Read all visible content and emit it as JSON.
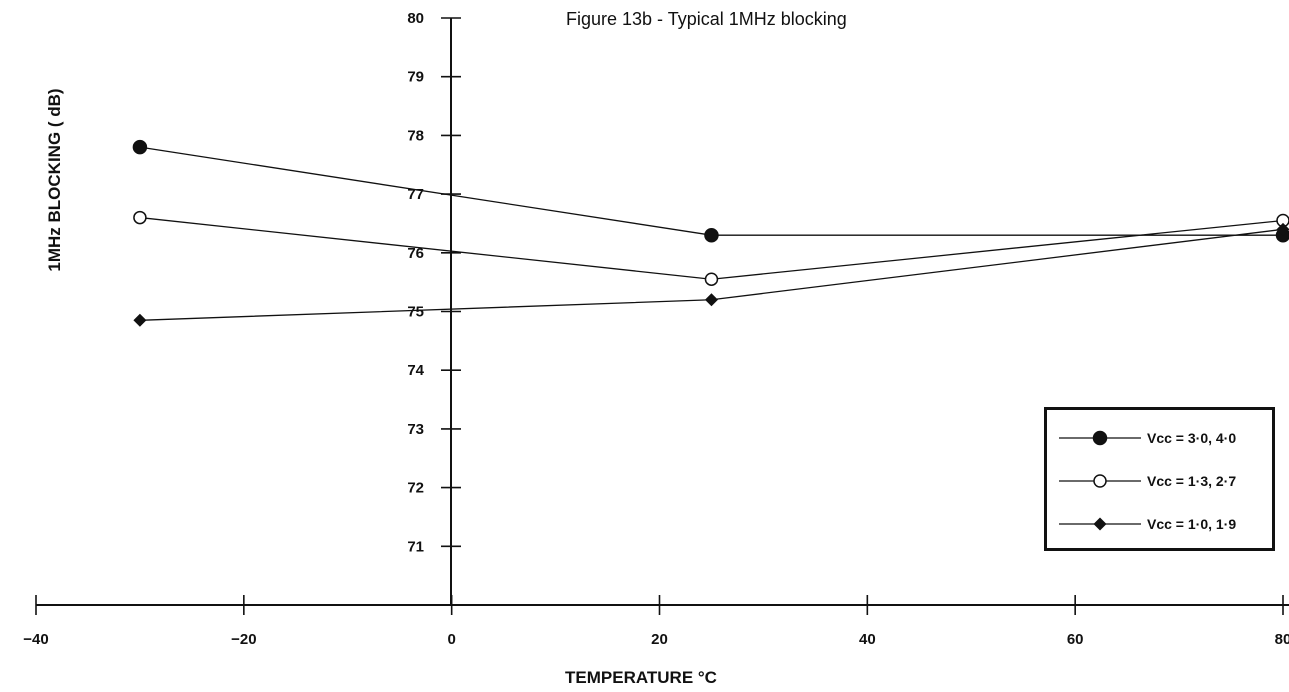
{
  "chart_data": {
    "type": "line",
    "title": "Figure 13b - Typical 1MHz blocking",
    "xlabel": "TEMPERATURE °C",
    "ylabel": "1MHz BLOCKING ( dB)",
    "xlim": [
      -40,
      80
    ],
    "ylim": [
      70,
      80
    ],
    "x_ticks": [
      -40,
      -20,
      0,
      20,
      40,
      60,
      80
    ],
    "x_tick_labels": [
      "−40",
      "−20",
      "0",
      "20",
      "40",
      "60",
      "80"
    ],
    "y_ticks": [
      71,
      72,
      73,
      74,
      75,
      76,
      77,
      78,
      79,
      80
    ],
    "y_tick_labels": [
      "71",
      "72",
      "73",
      "74",
      "75",
      "76",
      "77",
      "78",
      "79",
      "80"
    ],
    "x": [
      -30,
      25,
      80
    ],
    "series": [
      {
        "name": "Vcc = 3·0, 4·0",
        "marker": "filled-circle",
        "values": [
          77.8,
          76.3,
          76.3
        ]
      },
      {
        "name": "Vcc = 1·3, 2·7",
        "marker": "open-circle",
        "values": [
          76.6,
          75.55,
          76.55
        ]
      },
      {
        "name": "Vcc = 1·0, 1·9",
        "marker": "filled-diamond",
        "values": [
          74.85,
          75.2,
          76.4
        ]
      }
    ],
    "legend_position": "bottom-right",
    "grid": false,
    "colors": {
      "line": "#111111",
      "background": "#ffffff"
    }
  }
}
